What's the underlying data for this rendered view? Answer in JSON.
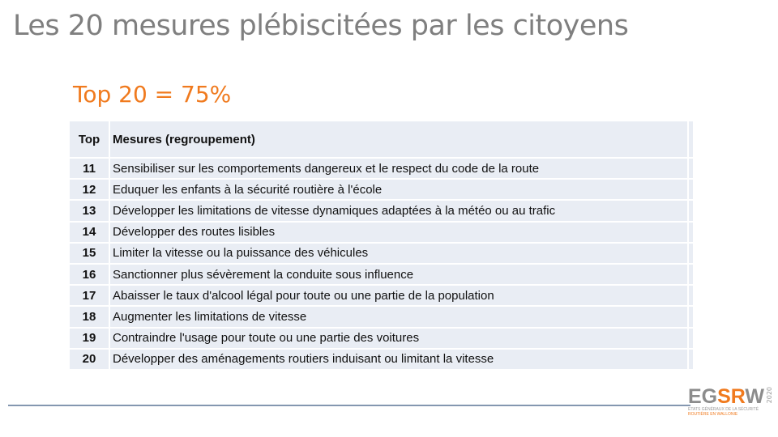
{
  "title": "Les 20 mesures plébiscitées par les citoyens",
  "subtitle": "Top 20 = 75%",
  "table": {
    "headers": [
      "Top",
      "Mesures (regroupement)"
    ],
    "rows": [
      {
        "rank": "11",
        "label": "Sensibiliser sur les comportements dangereux et le respect du code de la route"
      },
      {
        "rank": "12",
        "label": "Eduquer les enfants à la sécurité routière à l'école"
      },
      {
        "rank": "13",
        "label": "Développer les limitations de vitesse dynamiques adaptées à la météo ou au trafic"
      },
      {
        "rank": "14",
        "label": "Développer des routes lisibles"
      },
      {
        "rank": "15",
        "label": "Limiter la vitesse ou la puissance des véhicules"
      },
      {
        "rank": "16",
        "label": "Sanctionner plus sévèrement la conduite sous influence"
      },
      {
        "rank": "17",
        "label": "Abaisser le taux d'alcool légal pour toute ou une partie de la population"
      },
      {
        "rank": "18",
        "label": "Augmenter les limitations de vitesse"
      },
      {
        "rank": "19",
        "label": "Contraindre l'usage pour toute ou une partie des voitures"
      },
      {
        "rank": "20",
        "label": "Développer des aménagements routiers induisant ou limitant la vitesse"
      }
    ]
  },
  "logo": {
    "a": "EG",
    "b": "SR",
    "c": "W",
    "year": "2020",
    "line1": "ETATS GÉNÉRAUX DE LA SÉCURITÉ",
    "line2": "ROUTIÈRE EN WALLONIE"
  },
  "colors": {
    "accent": "#f07a1e",
    "title": "#7f7f7f",
    "table_bg": "#e9edf4",
    "rule": "#8497b0"
  }
}
